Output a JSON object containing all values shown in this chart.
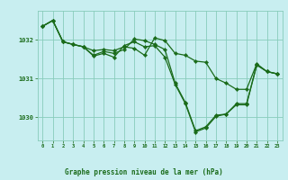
{
  "bg_color": "#c8eef0",
  "grid_color": "#88ccbb",
  "line_color": "#1a6b1a",
  "marker_color": "#1a6b1a",
  "title": "Graphe pression niveau de la mer (hPa)",
  "title_color": "#1a6b1a",
  "xlim": [
    -0.5,
    23.5
  ],
  "ylim": [
    1029.4,
    1032.75
  ],
  "yticks": [
    1030,
    1031,
    1032
  ],
  "xticks": [
    0,
    1,
    2,
    3,
    4,
    5,
    6,
    7,
    8,
    9,
    10,
    11,
    12,
    13,
    14,
    15,
    16,
    17,
    18,
    19,
    20,
    21,
    22,
    23
  ],
  "series1": {
    "x": [
      0,
      1,
      2,
      3,
      4,
      5,
      6,
      7,
      8,
      9,
      10,
      11,
      12,
      13,
      14,
      15,
      16,
      17,
      18,
      19,
      20,
      21,
      22,
      23
    ],
    "y": [
      1032.35,
      1032.5,
      1031.95,
      1031.88,
      1031.82,
      1031.72,
      1031.75,
      1031.72,
      1031.82,
      1031.78,
      1031.6,
      1032.05,
      1031.98,
      1031.65,
      1031.6,
      1031.45,
      1031.42,
      1031.0,
      1030.88,
      1030.72,
      1030.72,
      1031.38,
      1031.18,
      1031.12
    ]
  },
  "series2": {
    "x": [
      0,
      1,
      2,
      3,
      4,
      5,
      6,
      7,
      8,
      9,
      10,
      11,
      12,
      13,
      14,
      15,
      16,
      17,
      18,
      19,
      20,
      21,
      22,
      23
    ],
    "y": [
      1032.35,
      1032.5,
      1031.95,
      1031.88,
      1031.82,
      1031.6,
      1031.7,
      1031.65,
      1031.75,
      1032.02,
      1031.98,
      1031.88,
      1031.75,
      1030.88,
      1030.38,
      1029.65,
      1029.75,
      1030.05,
      1030.08,
      1030.35,
      1030.35,
      1031.35,
      1031.18,
      1031.12
    ]
  },
  "series3": {
    "x": [
      0,
      1,
      2,
      3,
      4,
      5,
      6,
      7,
      8,
      9,
      10,
      11,
      12,
      13,
      14,
      15,
      16,
      17,
      18,
      19,
      20,
      21,
      22,
      23
    ],
    "y": [
      1032.35,
      1032.5,
      1031.95,
      1031.88,
      1031.82,
      1031.58,
      1031.65,
      1031.55,
      1031.85,
      1031.95,
      1031.82,
      1031.85,
      1031.55,
      1030.85,
      1030.35,
      1029.62,
      1029.72,
      1030.02,
      1030.08,
      1030.32,
      1030.32,
      1031.35,
      1031.18,
      1031.12
    ]
  }
}
